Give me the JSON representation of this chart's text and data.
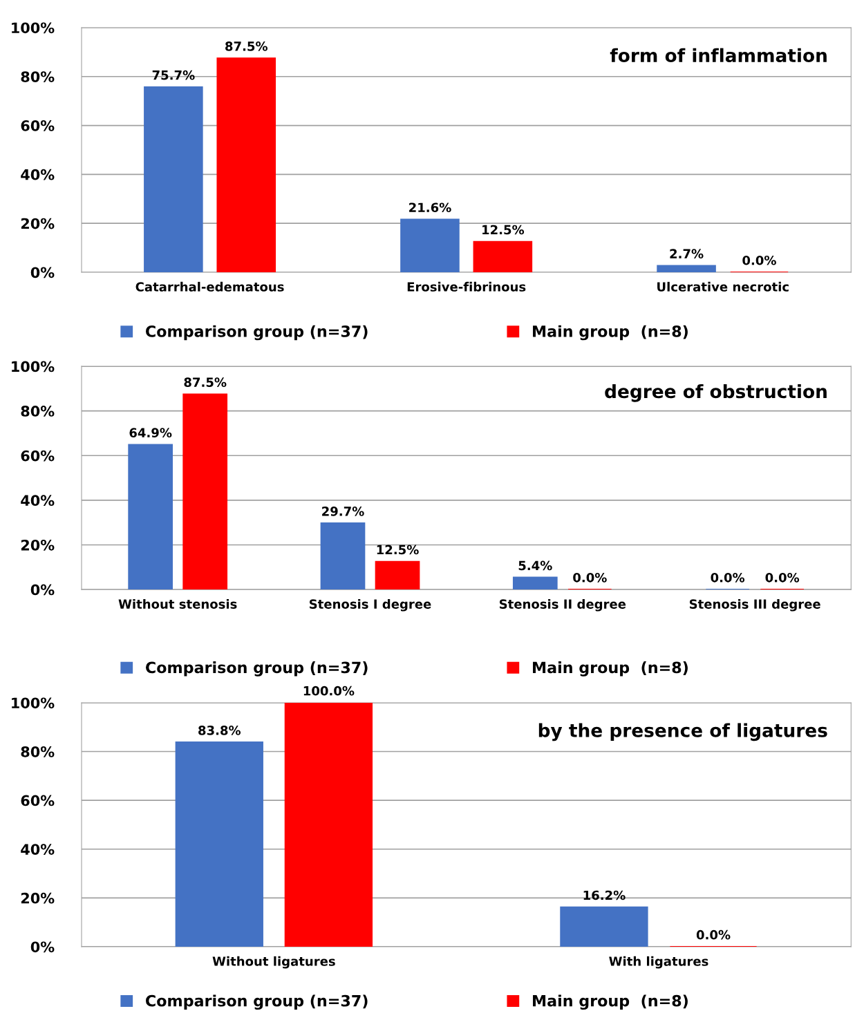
{
  "chart_data": [
    {
      "type": "bar",
      "title": "form of inflammation",
      "categories": [
        "Catarrhal-edematous",
        "Erosive-fibrinous",
        "Ulcerative necrotic"
      ],
      "series": [
        {
          "name": "Comparison group (n=37)",
          "color": "#4472c4",
          "values": [
            75.7,
            21.6,
            2.7
          ],
          "value_labels": [
            "75.7%",
            "21.6%",
            "2.7%"
          ]
        },
        {
          "name": "Main group  (n=8)",
          "color": "#ff0000",
          "values": [
            87.5,
            12.5,
            0.0
          ],
          "value_labels": [
            "87.5%",
            "12.5%",
            "0.0%"
          ]
        }
      ],
      "ylim": [
        0,
        100
      ],
      "yticks": [
        {
          "value": 0,
          "label": "0%"
        },
        {
          "value": 20,
          "label": "20%"
        },
        {
          "value": 40,
          "label": "40%"
        },
        {
          "value": 60,
          "label": "60%"
        },
        {
          "value": 80,
          "label": "80%"
        },
        {
          "value": 100,
          "label": "100%"
        }
      ],
      "grid": "y",
      "legend": "bottom"
    },
    {
      "type": "bar",
      "title": "degree of obstruction",
      "categories": [
        "Without stenosis",
        "Stenosis I degree",
        "Stenosis II degree",
        "Stenosis III degree"
      ],
      "series": [
        {
          "name": "Comparison group (n=37)",
          "color": "#4472c4",
          "values": [
            64.9,
            29.7,
            5.4,
            0.0
          ],
          "value_labels": [
            "64.9%",
            "29.7%",
            "5.4%",
            "0.0%"
          ]
        },
        {
          "name": "Main group  (n=8)",
          "color": "#ff0000",
          "values": [
            87.5,
            12.5,
            0.0,
            0.0
          ],
          "value_labels": [
            "87.5%",
            "12.5%",
            "0.0%",
            "0.0%"
          ]
        }
      ],
      "ylim": [
        0,
        100
      ],
      "yticks": [
        {
          "value": 0,
          "label": "0%"
        },
        {
          "value": 20,
          "label": "20%"
        },
        {
          "value": 40,
          "label": "40%"
        },
        {
          "value": 60,
          "label": "60%"
        },
        {
          "value": 80,
          "label": "80%"
        },
        {
          "value": 100,
          "label": "100%"
        }
      ],
      "grid": "y",
      "legend": "bottom"
    },
    {
      "type": "bar",
      "title": "by the presence of ligatures",
      "categories": [
        "Without ligatures",
        "With ligatures"
      ],
      "series": [
        {
          "name": "Comparison group (n=37)",
          "color": "#4472c4",
          "values": [
            83.8,
            16.2
          ],
          "value_labels": [
            "83.8%",
            "16.2%"
          ]
        },
        {
          "name": "Main group  (n=8)",
          "color": "#ff0000",
          "values": [
            100.0,
            0.0
          ],
          "value_labels": [
            "100.0%",
            "0.0%"
          ]
        }
      ],
      "ylim": [
        0,
        100
      ],
      "yticks": [
        {
          "value": 0,
          "label": "0%"
        },
        {
          "value": 20,
          "label": "20%"
        },
        {
          "value": 40,
          "label": "40%"
        },
        {
          "value": 60,
          "label": "60%"
        },
        {
          "value": 80,
          "label": "80%"
        },
        {
          "value": 100,
          "label": "100%"
        }
      ],
      "grid": "y",
      "legend": "bottom"
    }
  ]
}
